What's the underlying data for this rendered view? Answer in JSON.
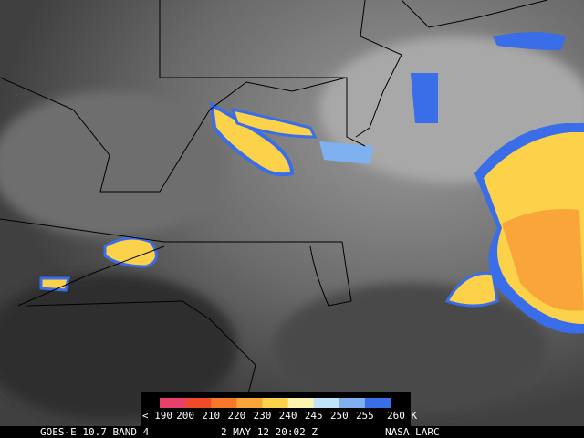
{
  "legend": {
    "labels": [
      "< 190",
      "200",
      "210",
      "220",
      "230",
      "240",
      "245",
      "250",
      "255",
      "260 K"
    ],
    "colors": [
      "#e8406a",
      "#f04a2a",
      "#f7782a",
      "#f9a53a",
      "#fbd24a",
      "#fdf2b0",
      "#bfe4f7",
      "#7fb0f0",
      "#3a6de8"
    ]
  },
  "caption": {
    "satellite": "GOES-E 10.7 BAND 4",
    "time": "2 MAY 12 20:02 Z",
    "source": "NASA LARC"
  }
}
